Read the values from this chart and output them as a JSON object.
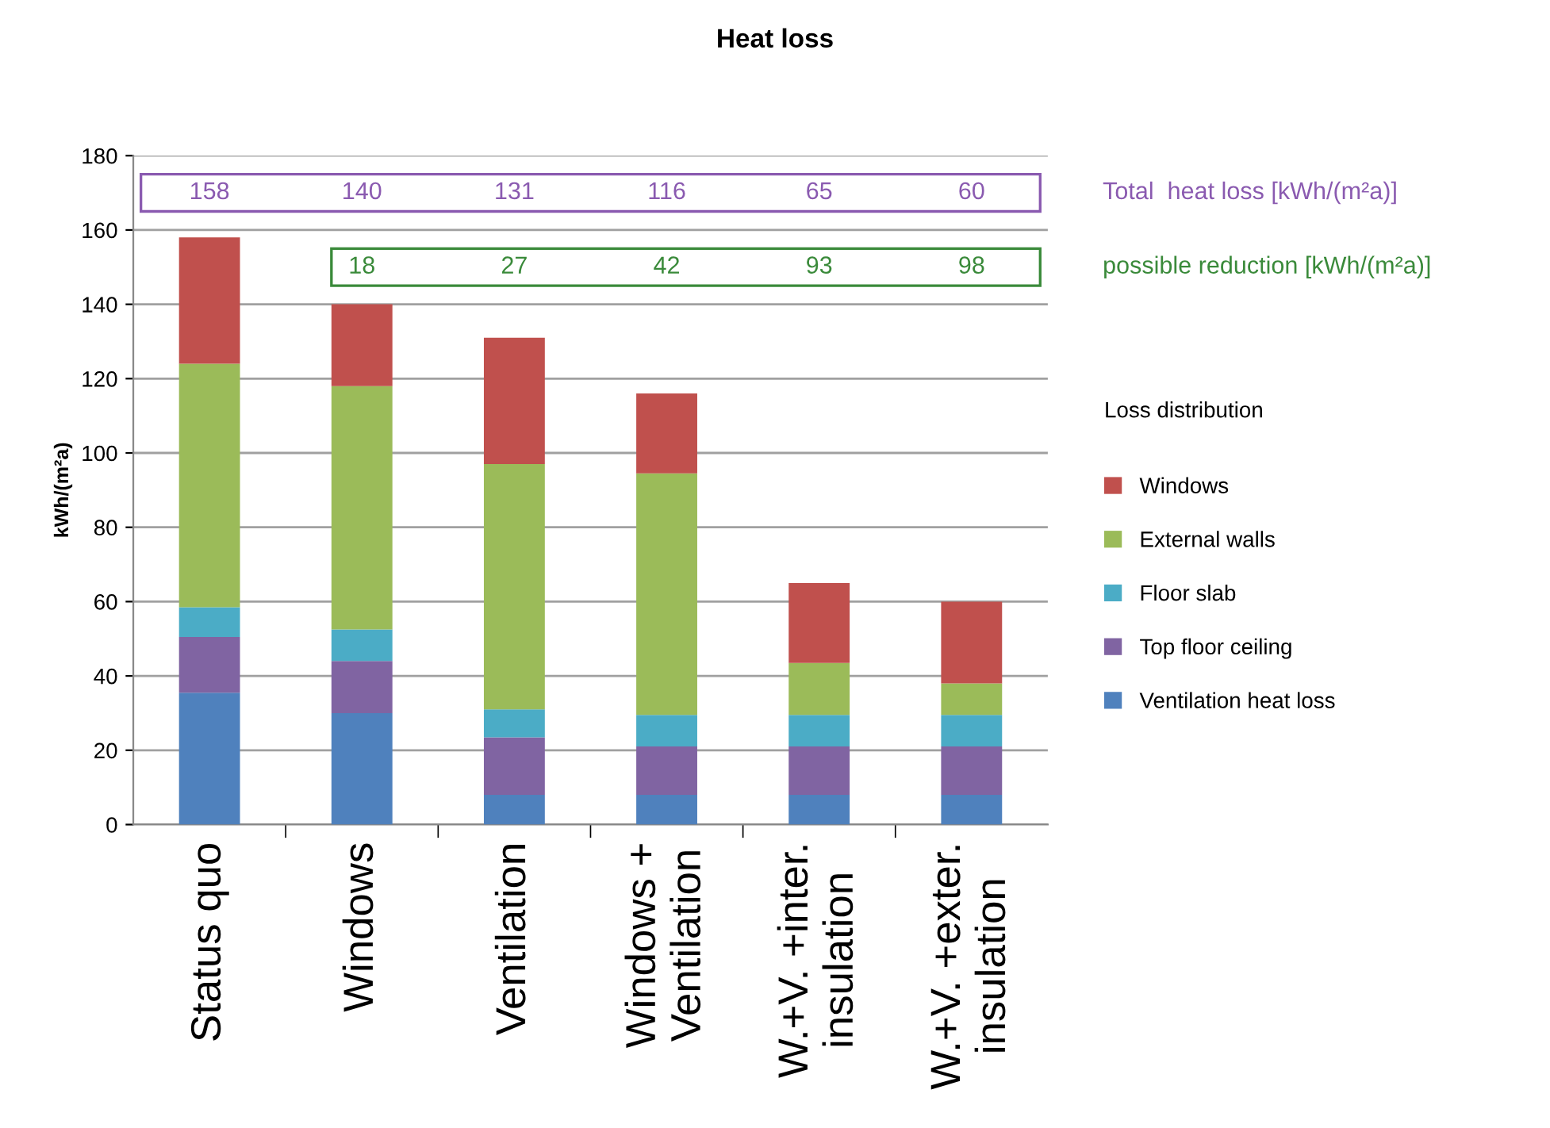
{
  "chart_data": {
    "type": "bar",
    "stacked": true,
    "title": "Heat loss",
    "ylabel": "kWh/(m²a)",
    "legend_title": "Loss distribution",
    "categories": [
      "Status quo",
      "Windows",
      "Ventilation",
      "Windows +\nVentilation",
      "W.+V. +inter.\ninsulation",
      "W.+V. +exter.\ninsulation"
    ],
    "series": [
      {
        "name": "Ventilation heat loss",
        "color": "#4f81bd",
        "values": [
          35.5,
          30,
          8,
          8,
          8,
          8
        ]
      },
      {
        "name": "Top floor ceiling",
        "color": "#8064a2",
        "values": [
          15,
          14,
          15.5,
          13,
          13,
          13
        ]
      },
      {
        "name": "Floor slab",
        "color": "#4bacc6",
        "values": [
          8,
          8.5,
          7.5,
          8.5,
          8.5,
          8.5
        ]
      },
      {
        "name": "External walls",
        "color": "#9bbb59",
        "values": [
          65.5,
          65.5,
          66,
          65,
          14,
          8.5
        ]
      },
      {
        "name": "Windows",
        "color": "#c0504d",
        "values": [
          34,
          22,
          34,
          21.5,
          21.5,
          22
        ]
      }
    ],
    "annotations": [
      "Total  heat loss [kWh/(m²a)]",
      "158",
      "140",
      "131",
      "116",
      "65",
      "60",
      "possible reduction [kWh/(m²a)]",
      "18",
      "27",
      "42",
      "93",
      "98"
    ],
    "ylim": [
      0,
      180
    ],
    "yticks": [
      0,
      20,
      40,
      60,
      80,
      100,
      120,
      140,
      160,
      180
    ],
    "grid": "y",
    "legend": "right"
  }
}
